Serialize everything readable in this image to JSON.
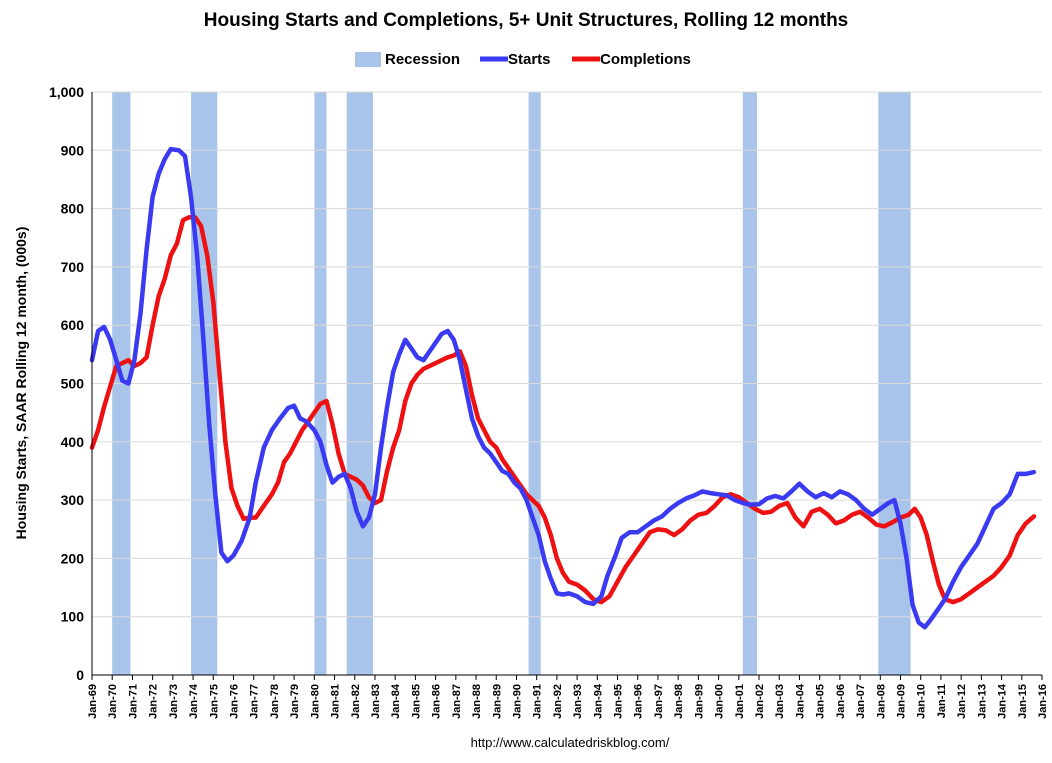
{
  "chart_data": {
    "type": "line",
    "title": "Housing Starts and Completions, 5+ Unit Structures, Rolling 12 months",
    "ylabel": "Housing Starts, SAAR Rolling 12 month, (000s)",
    "source": "http://www.calculatedriskblog.com/",
    "ylim": [
      0,
      1000
    ],
    "yticks": [
      0,
      100,
      200,
      300,
      400,
      500,
      600,
      700,
      800,
      900,
      1000
    ],
    "ytick_labels": [
      "0",
      "100",
      "200",
      "300",
      "400",
      "500",
      "600",
      "700",
      "800",
      "900",
      "1,000"
    ],
    "xlim": [
      1969.0,
      2016.0
    ],
    "xtick_labels": [
      "Jan-69",
      "Jan-70",
      "Jan-71",
      "Jan-72",
      "Jan-73",
      "Jan-74",
      "Jan-75",
      "Jan-76",
      "Jan-77",
      "Jan-78",
      "Jan-79",
      "Jan-80",
      "Jan-81",
      "Jan-82",
      "Jan-83",
      "Jan-84",
      "Jan-85",
      "Jan-86",
      "Jan-87",
      "Jan-88",
      "Jan-89",
      "Jan-90",
      "Jan-91",
      "Jan-92",
      "Jan-93",
      "Jan-94",
      "Jan-95",
      "Jan-96",
      "Jan-97",
      "Jan-98",
      "Jan-99",
      "Jan-00",
      "Jan-01",
      "Jan-02",
      "Jan-03",
      "Jan-04",
      "Jan-05",
      "Jan-06",
      "Jan-07",
      "Jan-08",
      "Jan-09",
      "Jan-10",
      "Jan-11",
      "Jan-12",
      "Jan-13",
      "Jan-14",
      "Jan-15",
      "Jan-16"
    ],
    "grid": true,
    "legend_position": "top-center",
    "legend": [
      "Recession",
      "Starts",
      "Completions"
    ],
    "colors": {
      "recession": "#a9c4eb",
      "starts": "#3a3af2",
      "completions": "#ee1111",
      "grid": "#d9d9d9"
    },
    "recessions": [
      [
        1970.0,
        1970.9
      ],
      [
        1973.9,
        1975.2
      ],
      [
        1980.0,
        1980.6
      ],
      [
        1981.6,
        1982.9
      ],
      [
        1990.6,
        1991.2
      ],
      [
        2001.2,
        2001.9
      ],
      [
        2007.9,
        2009.5
      ]
    ],
    "series": [
      {
        "name": "Starts",
        "points": [
          [
            1969.0,
            540
          ],
          [
            1969.3,
            590
          ],
          [
            1969.6,
            597
          ],
          [
            1969.9,
            575
          ],
          [
            1970.2,
            540
          ],
          [
            1970.5,
            505
          ],
          [
            1970.8,
            500
          ],
          [
            1971.1,
            540
          ],
          [
            1971.4,
            620
          ],
          [
            1971.7,
            730
          ],
          [
            1972.0,
            820
          ],
          [
            1972.3,
            860
          ],
          [
            1972.6,
            885
          ],
          [
            1972.9,
            902
          ],
          [
            1973.3,
            900
          ],
          [
            1973.6,
            890
          ],
          [
            1973.9,
            820
          ],
          [
            1974.2,
            720
          ],
          [
            1974.5,
            580
          ],
          [
            1974.8,
            430
          ],
          [
            1975.1,
            310
          ],
          [
            1975.4,
            210
          ],
          [
            1975.7,
            195
          ],
          [
            1976.0,
            205
          ],
          [
            1976.4,
            230
          ],
          [
            1976.8,
            270
          ],
          [
            1977.1,
            330
          ],
          [
            1977.5,
            390
          ],
          [
            1977.9,
            420
          ],
          [
            1978.3,
            440
          ],
          [
            1978.7,
            458
          ],
          [
            1979.0,
            462
          ],
          [
            1979.3,
            440
          ],
          [
            1979.6,
            435
          ],
          [
            1980.0,
            420
          ],
          [
            1980.3,
            400
          ],
          [
            1980.6,
            360
          ],
          [
            1980.9,
            330
          ],
          [
            1981.2,
            340
          ],
          [
            1981.5,
            345
          ],
          [
            1981.8,
            320
          ],
          [
            1982.1,
            280
          ],
          [
            1982.4,
            255
          ],
          [
            1982.7,
            270
          ],
          [
            1983.0,
            310
          ],
          [
            1983.3,
            390
          ],
          [
            1983.6,
            460
          ],
          [
            1983.9,
            520
          ],
          [
            1984.2,
            550
          ],
          [
            1984.5,
            575
          ],
          [
            1984.8,
            560
          ],
          [
            1985.1,
            545
          ],
          [
            1985.4,
            540
          ],
          [
            1985.7,
            555
          ],
          [
            1986.0,
            570
          ],
          [
            1986.3,
            585
          ],
          [
            1986.6,
            590
          ],
          [
            1986.9,
            575
          ],
          [
            1987.2,
            540
          ],
          [
            1987.5,
            490
          ],
          [
            1987.8,
            440
          ],
          [
            1988.1,
            410
          ],
          [
            1988.4,
            390
          ],
          [
            1988.7,
            380
          ],
          [
            1989.0,
            365
          ],
          [
            1989.3,
            350
          ],
          [
            1989.6,
            345
          ],
          [
            1989.9,
            330
          ],
          [
            1990.2,
            320
          ],
          [
            1990.5,
            300
          ],
          [
            1990.8,
            270
          ],
          [
            1991.1,
            240
          ],
          [
            1991.4,
            195
          ],
          [
            1991.7,
            165
          ],
          [
            1992.0,
            140
          ],
          [
            1992.3,
            138
          ],
          [
            1992.6,
            140
          ],
          [
            1993.0,
            135
          ],
          [
            1993.4,
            125
          ],
          [
            1993.8,
            122
          ],
          [
            1994.2,
            135
          ],
          [
            1994.5,
            170
          ],
          [
            1994.9,
            205
          ],
          [
            1995.2,
            235
          ],
          [
            1995.6,
            245
          ],
          [
            1996.0,
            245
          ],
          [
            1996.4,
            255
          ],
          [
            1996.8,
            265
          ],
          [
            1997.2,
            272
          ],
          [
            1997.6,
            285
          ],
          [
            1998.0,
            295
          ],
          [
            1998.4,
            303
          ],
          [
            1998.8,
            308
          ],
          [
            1999.2,
            315
          ],
          [
            1999.6,
            312
          ],
          [
            2000.0,
            310
          ],
          [
            2000.4,
            308
          ],
          [
            2000.8,
            300
          ],
          [
            2001.2,
            295
          ],
          [
            2001.6,
            292
          ],
          [
            2002.0,
            293
          ],
          [
            2002.4,
            303
          ],
          [
            2002.8,
            307
          ],
          [
            2003.2,
            303
          ],
          [
            2003.6,
            315
          ],
          [
            2004.0,
            328
          ],
          [
            2004.4,
            315
          ],
          [
            2004.8,
            305
          ],
          [
            2005.2,
            312
          ],
          [
            2005.6,
            305
          ],
          [
            2006.0,
            315
          ],
          [
            2006.4,
            310
          ],
          [
            2006.8,
            300
          ],
          [
            2007.2,
            285
          ],
          [
            2007.6,
            275
          ],
          [
            2008.0,
            285
          ],
          [
            2008.4,
            295
          ],
          [
            2008.7,
            300
          ],
          [
            2009.0,
            260
          ],
          [
            2009.3,
            200
          ],
          [
            2009.6,
            120
          ],
          [
            2009.9,
            90
          ],
          [
            2010.2,
            82
          ],
          [
            2010.5,
            95
          ],
          [
            2010.8,
            110
          ],
          [
            2011.2,
            130
          ],
          [
            2011.6,
            160
          ],
          [
            2012.0,
            185
          ],
          [
            2012.4,
            205
          ],
          [
            2012.8,
            225
          ],
          [
            2013.2,
            255
          ],
          [
            2013.6,
            285
          ],
          [
            2014.0,
            295
          ],
          [
            2014.4,
            310
          ],
          [
            2014.8,
            345
          ],
          [
            2015.2,
            345
          ],
          [
            2015.6,
            348
          ]
        ]
      },
      {
        "name": "Completions",
        "points": [
          [
            1969.0,
            390
          ],
          [
            1969.3,
            420
          ],
          [
            1969.6,
            460
          ],
          [
            1969.9,
            495
          ],
          [
            1970.2,
            530
          ],
          [
            1970.5,
            535
          ],
          [
            1970.8,
            540
          ],
          [
            1971.1,
            530
          ],
          [
            1971.4,
            535
          ],
          [
            1971.7,
            545
          ],
          [
            1972.0,
            600
          ],
          [
            1972.3,
            650
          ],
          [
            1972.6,
            680
          ],
          [
            1972.9,
            720
          ],
          [
            1973.2,
            740
          ],
          [
            1973.5,
            780
          ],
          [
            1973.8,
            785
          ],
          [
            1974.1,
            785
          ],
          [
            1974.4,
            770
          ],
          [
            1974.7,
            720
          ],
          [
            1975.0,
            640
          ],
          [
            1975.3,
            520
          ],
          [
            1975.6,
            400
          ],
          [
            1975.9,
            320
          ],
          [
            1976.2,
            290
          ],
          [
            1976.5,
            268
          ],
          [
            1976.8,
            270
          ],
          [
            1977.1,
            270
          ],
          [
            1977.5,
            290
          ],
          [
            1977.9,
            310
          ],
          [
            1978.2,
            330
          ],
          [
            1978.5,
            365
          ],
          [
            1978.8,
            380
          ],
          [
            1979.1,
            400
          ],
          [
            1979.4,
            420
          ],
          [
            1979.7,
            435
          ],
          [
            1980.0,
            450
          ],
          [
            1980.3,
            465
          ],
          [
            1980.6,
            470
          ],
          [
            1980.9,
            430
          ],
          [
            1981.2,
            380
          ],
          [
            1981.5,
            345
          ],
          [
            1981.8,
            340
          ],
          [
            1982.1,
            335
          ],
          [
            1982.4,
            325
          ],
          [
            1982.7,
            305
          ],
          [
            1983.0,
            295
          ],
          [
            1983.3,
            300
          ],
          [
            1983.6,
            350
          ],
          [
            1983.9,
            390
          ],
          [
            1984.2,
            420
          ],
          [
            1984.5,
            470
          ],
          [
            1984.8,
            500
          ],
          [
            1985.1,
            515
          ],
          [
            1985.4,
            525
          ],
          [
            1985.7,
            530
          ],
          [
            1986.0,
            535
          ],
          [
            1986.3,
            540
          ],
          [
            1986.6,
            545
          ],
          [
            1986.9,
            548
          ],
          [
            1987.2,
            555
          ],
          [
            1987.5,
            530
          ],
          [
            1987.8,
            480
          ],
          [
            1988.1,
            440
          ],
          [
            1988.4,
            420
          ],
          [
            1988.7,
            400
          ],
          [
            1989.0,
            390
          ],
          [
            1989.3,
            370
          ],
          [
            1989.6,
            355
          ],
          [
            1989.9,
            340
          ],
          [
            1990.2,
            325
          ],
          [
            1990.5,
            310
          ],
          [
            1990.8,
            300
          ],
          [
            1991.1,
            290
          ],
          [
            1991.4,
            270
          ],
          [
            1991.7,
            240
          ],
          [
            1992.0,
            200
          ],
          [
            1992.3,
            175
          ],
          [
            1992.6,
            160
          ],
          [
            1993.0,
            155
          ],
          [
            1993.4,
            145
          ],
          [
            1993.8,
            130
          ],
          [
            1994.2,
            125
          ],
          [
            1994.6,
            135
          ],
          [
            1995.0,
            160
          ],
          [
            1995.4,
            185
          ],
          [
            1995.8,
            205
          ],
          [
            1996.2,
            225
          ],
          [
            1996.6,
            245
          ],
          [
            1997.0,
            250
          ],
          [
            1997.4,
            248
          ],
          [
            1997.8,
            240
          ],
          [
            1998.2,
            250
          ],
          [
            1998.6,
            265
          ],
          [
            1999.0,
            275
          ],
          [
            1999.4,
            278
          ],
          [
            1999.8,
            290
          ],
          [
            2000.2,
            305
          ],
          [
            2000.6,
            310
          ],
          [
            2001.0,
            305
          ],
          [
            2001.4,
            295
          ],
          [
            2001.8,
            285
          ],
          [
            2002.2,
            278
          ],
          [
            2002.6,
            280
          ],
          [
            2003.0,
            290
          ],
          [
            2003.4,
            295
          ],
          [
            2003.8,
            270
          ],
          [
            2004.2,
            255
          ],
          [
            2004.6,
            280
          ],
          [
            2005.0,
            285
          ],
          [
            2005.4,
            275
          ],
          [
            2005.8,
            260
          ],
          [
            2006.2,
            265
          ],
          [
            2006.6,
            275
          ],
          [
            2007.0,
            280
          ],
          [
            2007.4,
            270
          ],
          [
            2007.8,
            258
          ],
          [
            2008.2,
            255
          ],
          [
            2008.6,
            262
          ],
          [
            2009.0,
            270
          ],
          [
            2009.4,
            275
          ],
          [
            2009.7,
            285
          ],
          [
            2010.0,
            270
          ],
          [
            2010.3,
            240
          ],
          [
            2010.6,
            195
          ],
          [
            2010.9,
            155
          ],
          [
            2011.2,
            130
          ],
          [
            2011.6,
            125
          ],
          [
            2012.0,
            130
          ],
          [
            2012.4,
            140
          ],
          [
            2012.8,
            150
          ],
          [
            2013.2,
            160
          ],
          [
            2013.6,
            170
          ],
          [
            2014.0,
            185
          ],
          [
            2014.4,
            205
          ],
          [
            2014.8,
            240
          ],
          [
            2015.2,
            260
          ],
          [
            2015.6,
            272
          ]
        ]
      }
    ]
  }
}
